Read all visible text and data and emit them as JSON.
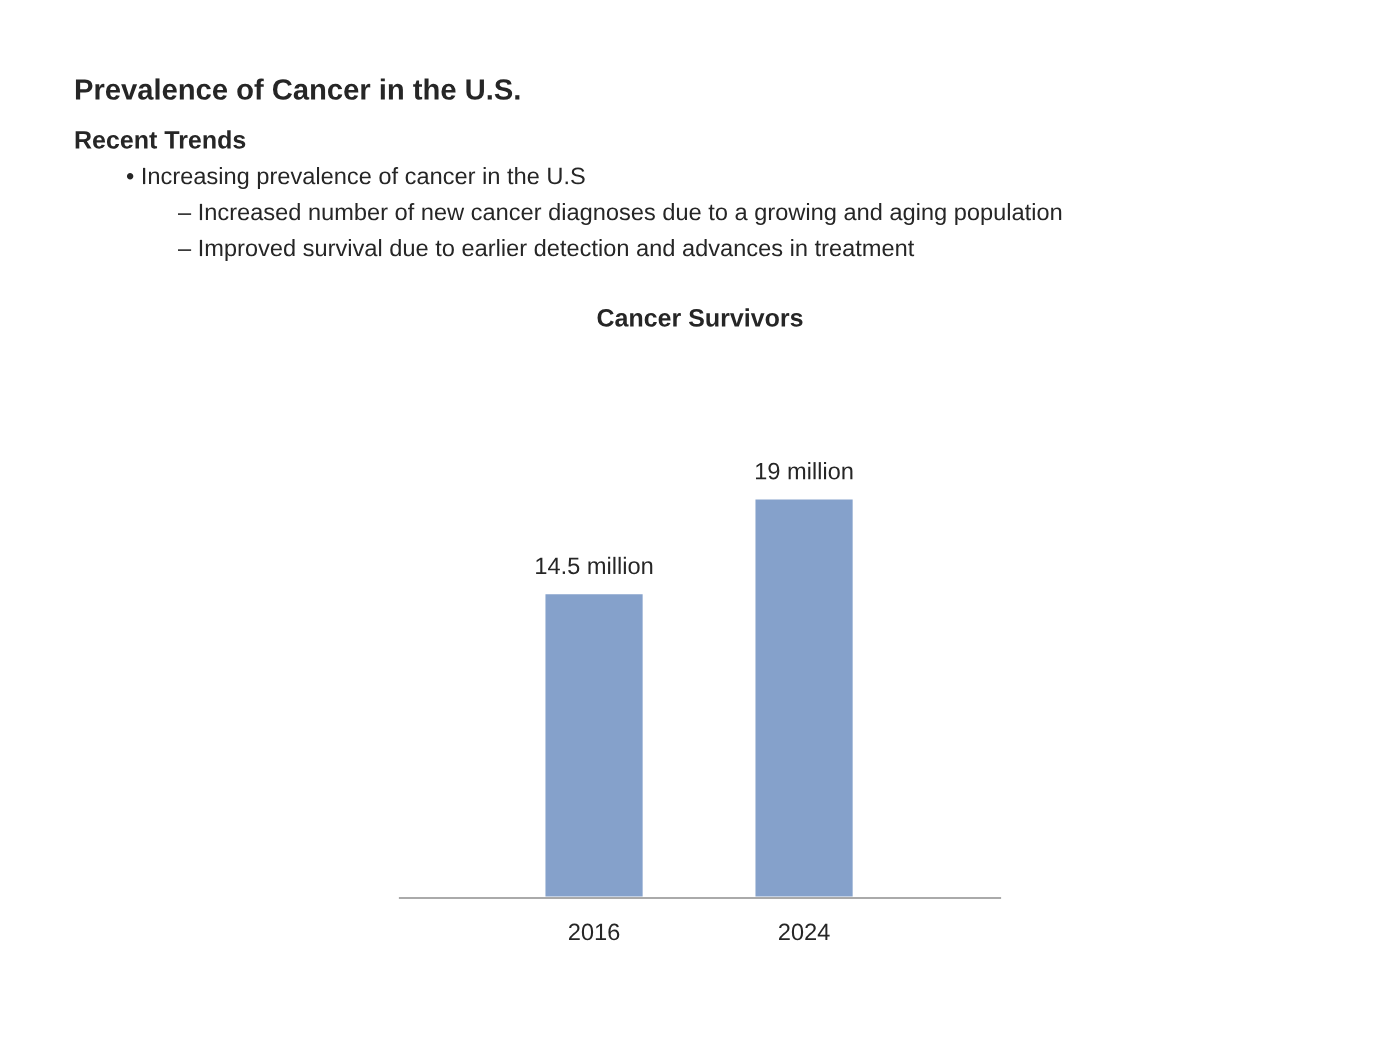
{
  "chart_data": [
    {
      "type": "other",
      "title": "Prevalence of Cancer in the U.S.",
      "subtitle": "Recent Trends",
      "annotations": [
        "• Increasing prevalence of cancer in the U.S",
        "– Increased number of new cancer diagnoses due to a growing and aging population",
        "– Improved survival due to earlier detection and advances in treatment"
      ]
    },
    {
      "type": "bar",
      "title": "Cancer Survivors",
      "categories": [
        "2016",
        "2024"
      ],
      "values": [
        14.5,
        19
      ],
      "color": "#85a1cb",
      "value_labels": [
        "14.5 million",
        "19 million"
      ],
      "grid": false,
      "legend": false
    }
  ]
}
